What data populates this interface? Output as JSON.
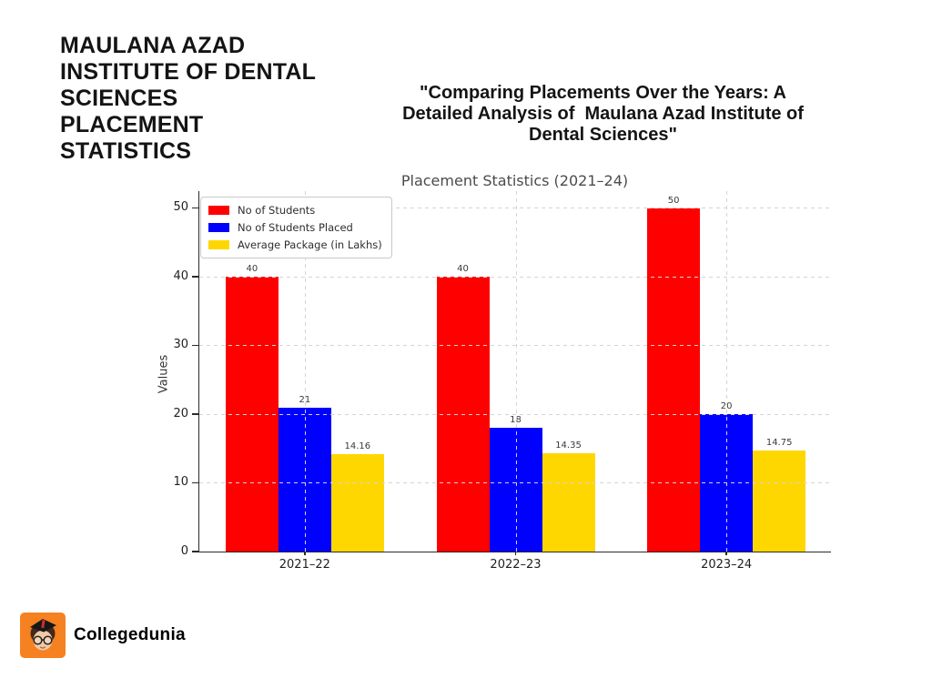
{
  "poster": {
    "background": "#ffffff",
    "title_lines": [
      "MAULANA AZAD",
      "INSTITUTE OF DENTAL",
      "SCIENCES",
      "PLACEMENT",
      "STATISTICS"
    ],
    "subtitle_lines": [
      "\"Comparing Placements Over the Years: A",
      "Detailed Analysis of  Maulana Azad Institute of",
      "Dental Sciences\""
    ]
  },
  "chart_data": {
    "type": "bar",
    "title": "Placement Statistics (2021–24)",
    "xlabel": "",
    "ylabel": "Values",
    "categories": [
      "2021–22",
      "2022–23",
      "2023–24"
    ],
    "series": [
      {
        "name": "No of Students",
        "color": "#ff0000",
        "values": [
          40,
          40,
          50
        ]
      },
      {
        "name": "No of Students Placed",
        "color": "#0000ff",
        "values": [
          21,
          18,
          20
        ]
      },
      {
        "name": "Average Package (in Lakhs)",
        "color": "#ffd700",
        "values": [
          14.16,
          14.35,
          14.75
        ]
      }
    ],
    "yticks": [
      0,
      10,
      20,
      30,
      40,
      50
    ],
    "ylim": [
      0,
      52.6
    ],
    "grid": true,
    "grid_style": "dashed",
    "legend_position": "upper left",
    "bar_value_labels": true
  },
  "footer": {
    "brand": "Collegedunia",
    "logo_color": "#f58120"
  }
}
